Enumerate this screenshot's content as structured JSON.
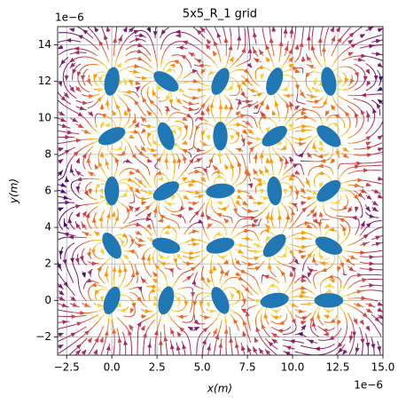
{
  "chart_data": {
    "type": "streamplot",
    "title": "5x5_R_1 grid",
    "x_label": "x(m)",
    "y_label": "y(m)",
    "x_offset": "1e−6",
    "y_offset": "1e−6",
    "xlim": [
      -3,
      15
    ],
    "ylim": [
      -3,
      15
    ],
    "xticks": [
      {
        "value": -2.5,
        "label": "−2.5"
      },
      {
        "value": 0,
        "label": "0.0"
      },
      {
        "value": 2.5,
        "label": "2.5"
      },
      {
        "value": 5,
        "label": "5.0"
      },
      {
        "value": 7.5,
        "label": "7.5"
      },
      {
        "value": 10,
        "label": "10.0"
      },
      {
        "value": 12.5,
        "label": "12.5"
      },
      {
        "value": 15,
        "label": "15.0"
      }
    ],
    "yticks": [
      {
        "value": -2,
        "label": "−2"
      },
      0,
      2,
      4,
      6,
      8,
      10,
      12,
      14
    ],
    "grid": true,
    "ellipses": {
      "color": "#1f77b4",
      "major": 1.6,
      "minor": 0.8,
      "x": [
        0,
        3,
        6,
        9,
        12,
        0,
        3,
        6,
        9,
        12,
        0,
        3,
        6,
        9,
        12,
        0,
        3,
        6,
        9,
        12,
        0,
        3,
        6,
        9,
        12
      ],
      "y": [
        12,
        12,
        12,
        12,
        12,
        9,
        9,
        9,
        9,
        9,
        6,
        6,
        6,
        6,
        6,
        3,
        3,
        3,
        3,
        3,
        0,
        0,
        0,
        0,
        0
      ],
      "angle": [
        80,
        -35,
        65,
        70,
        100,
        25,
        110,
        90,
        35,
        -40,
        90,
        30,
        5,
        95,
        40,
        120,
        -15,
        15,
        45,
        -25,
        70,
        75,
        115,
        10,
        0
      ]
    }
  }
}
